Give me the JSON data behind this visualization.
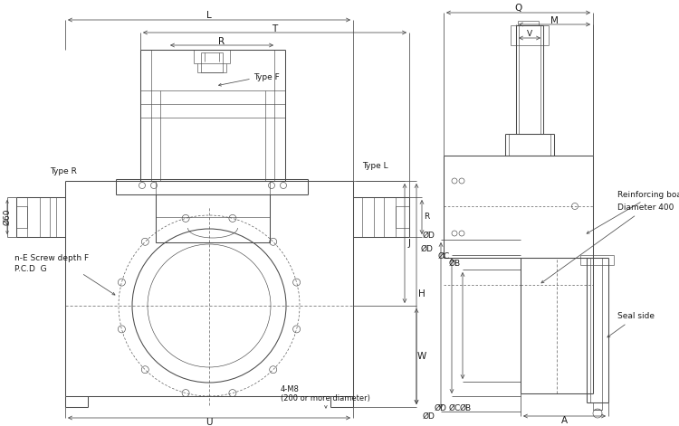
{
  "bg": "#ffffff",
  "lc": "#4a4a4a",
  "tc": "#1a1a1a",
  "lw": 0.75,
  "lwt": 0.45,
  "lwd": 0.55,
  "fs": 7.5,
  "fss": 6.5,
  "labels": {
    "L": "L",
    "T": "T",
    "R": "R",
    "TypeF": "Type F",
    "TypeR": "Type R",
    "TypeL": "Type L",
    "phi60": "Ø60",
    "nE": "n-E Screw depth F",
    "PCD": "P.C.D  G",
    "J": "J",
    "H": "H",
    "W": "W",
    "U": "U",
    "M8": "4-M8",
    "M8b": "(200 or more diameter)",
    "Q": "Q",
    "M": "M",
    "V": "V",
    "RB": "Reinforcing board",
    "D400": "Diameter 400",
    "phiD": "ØD",
    "phiC": "ØC",
    "phiB": "ØB",
    "A": "A",
    "Seal": "Seal side",
    "SmR": "R"
  }
}
